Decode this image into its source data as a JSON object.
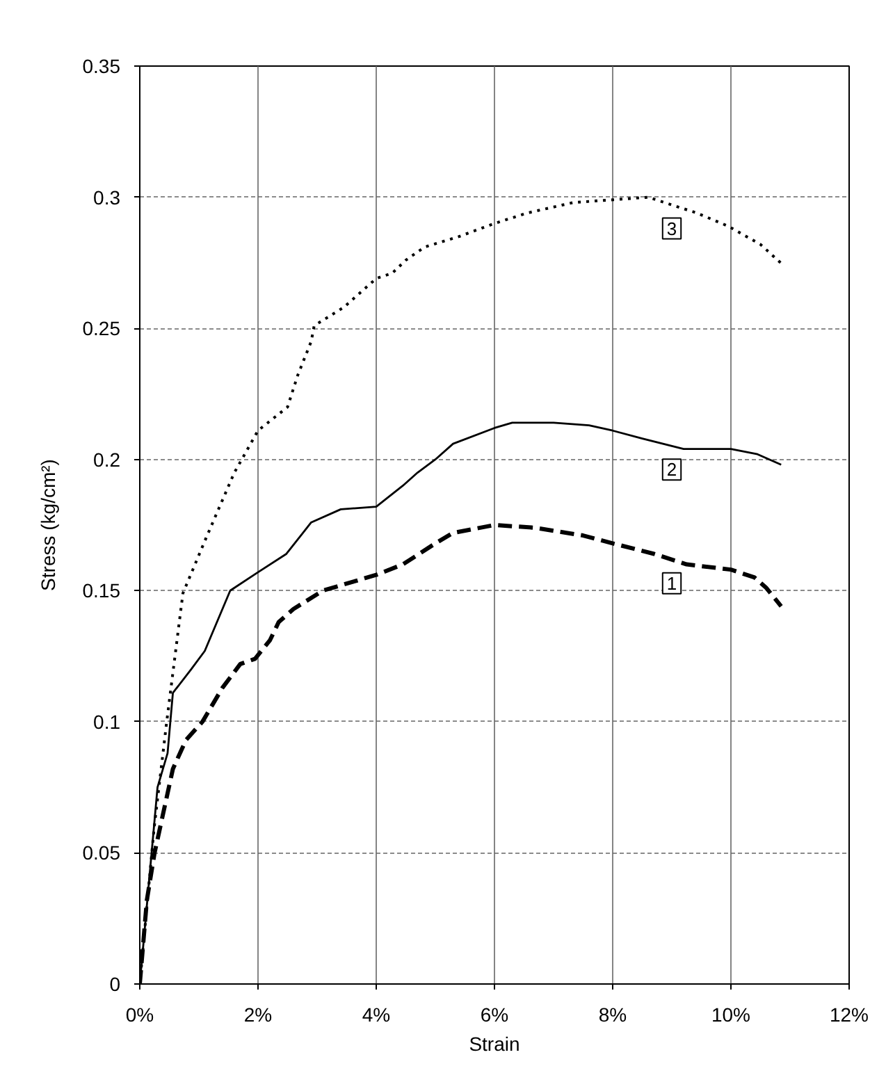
{
  "chart_data": {
    "type": "line",
    "xlabel": "Strain",
    "ylabel": "Stress (kg/cm²)",
    "xlim": [
      0,
      12
    ],
    "ylim": [
      0,
      0.35
    ],
    "xticks": [
      {
        "value": 0,
        "label": "0%"
      },
      {
        "value": 2,
        "label": "2%"
      },
      {
        "value": 4,
        "label": "4%"
      },
      {
        "value": 6,
        "label": "6%"
      },
      {
        "value": 8,
        "label": "8%"
      },
      {
        "value": 10,
        "label": "10%"
      },
      {
        "value": 12,
        "label": "12%"
      }
    ],
    "yticks": [
      0,
      0.05,
      0.1,
      0.15,
      0.2,
      0.25,
      0.3,
      0.35
    ],
    "grid": true,
    "series": [
      {
        "name": "1",
        "color": "#000000",
        "line_style": "dashed",
        "x": [
          0,
          0.12,
          0.25,
          0.56,
          0.78,
          1.06,
          1.4,
          1.7,
          1.95,
          2.2,
          2.35,
          2.6,
          3.1,
          4.0,
          4.45,
          5.0,
          5.3,
          6.0,
          6.67,
          7.5,
          8.0,
          8.7,
          9.25,
          10.0,
          10.4,
          10.6,
          10.85
        ],
        "values": [
          0,
          0.032,
          0.05,
          0.082,
          0.093,
          0.1,
          0.113,
          0.122,
          0.124,
          0.131,
          0.138,
          0.143,
          0.15,
          0.156,
          0.16,
          0.168,
          0.172,
          0.175,
          0.174,
          0.171,
          0.168,
          0.164,
          0.16,
          0.158,
          0.155,
          0.151,
          0.144
        ]
      },
      {
        "name": "2",
        "color": "#000000",
        "line_style": "solid",
        "x": [
          0,
          0.3,
          0.47,
          0.56,
          0.87,
          1.1,
          1.53,
          2.0,
          2.48,
          2.9,
          3.4,
          4.0,
          4.45,
          4.7,
          5.0,
          5.3,
          6.0,
          6.3,
          7.0,
          7.6,
          8.0,
          8.5,
          9.2,
          10.0,
          10.45,
          10.85
        ],
        "values": [
          0,
          0.075,
          0.088,
          0.111,
          0.12,
          0.127,
          0.15,
          0.157,
          0.164,
          0.176,
          0.181,
          0.182,
          0.19,
          0.195,
          0.2,
          0.206,
          0.212,
          0.214,
          0.214,
          0.213,
          0.211,
          0.208,
          0.204,
          0.204,
          0.202,
          0.198
        ]
      },
      {
        "name": "3",
        "color": "#000000",
        "line_style": "dotted",
        "x": [
          0,
          0.24,
          0.45,
          0.73,
          1.12,
          1.6,
          2.0,
          2.5,
          2.67,
          2.9,
          2.95,
          3.45,
          4.0,
          4.27,
          4.5,
          4.82,
          5.4,
          6.0,
          6.56,
          7.34,
          8.0,
          8.6,
          9.42,
          9.95,
          10.5,
          10.84
        ],
        "values": [
          0,
          0.059,
          0.099,
          0.149,
          0.17,
          0.195,
          0.211,
          0.22,
          0.232,
          0.245,
          0.251,
          0.258,
          0.269,
          0.271,
          0.276,
          0.281,
          0.285,
          0.29,
          0.294,
          0.298,
          0.299,
          0.3,
          0.294,
          0.289,
          0.282,
          0.275
        ]
      }
    ]
  }
}
